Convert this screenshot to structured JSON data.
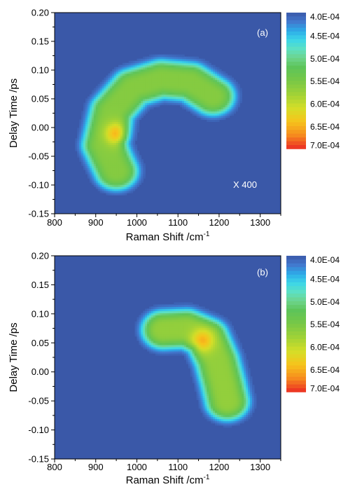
{
  "chart_data": [
    {
      "type": "heatmap",
      "panel_label": "(a)",
      "annotation": "X 400",
      "xlabel": "Raman Shift /cm",
      "xlabel_sup": "-1",
      "ylabel": "Delay Time /ps",
      "xlim": [
        800,
        1350
      ],
      "ylim": [
        -0.15,
        0.2
      ],
      "x_ticks": [
        "800",
        "900",
        "1000",
        "1100",
        "1200",
        "1300"
      ],
      "y_ticks": [
        "-0.15",
        "-0.10",
        "-0.05",
        "0.00",
        "0.05",
        "0.10",
        "0.15",
        "0.20"
      ],
      "x_tick_values": [
        800,
        900,
        1000,
        1100,
        1200,
        1300
      ],
      "y_tick_values": [
        -0.15,
        -0.1,
        -0.05,
        0.0,
        0.05,
        0.1,
        0.15,
        0.2
      ],
      "colorbar": {
        "labels": [
          "4.0E-04",
          "4.5E-04",
          "5.0E-04",
          "5.5E-04",
          "6.0E-04",
          "6.5E-04",
          "7.0E-04"
        ],
        "min": 0.0004,
        "max": 0.0007
      },
      "features": [
        {
          "shape": "curved ridge",
          "path": [
            [
              950,
              -0.075
            ],
            [
              920,
              -0.03
            ],
            [
              940,
              0.03
            ],
            [
              990,
              0.07
            ],
            [
              1060,
              0.085
            ],
            [
              1130,
              0.08
            ],
            [
              1185,
              0.055
            ]
          ],
          "peak_value": 0.00056
        },
        {
          "shape": "peak",
          "x": 950,
          "y": -0.01,
          "value": 0.00065
        }
      ]
    },
    {
      "type": "heatmap",
      "panel_label": "(b)",
      "xlabel": "Raman Shift /cm",
      "xlabel_sup": "-1",
      "ylabel": "Delay Time /ps",
      "xlim": [
        800,
        1350
      ],
      "ylim": [
        -0.15,
        0.2
      ],
      "x_ticks": [
        "800",
        "900",
        "1000",
        "1100",
        "1200",
        "1300"
      ],
      "y_ticks": [
        "-0.15",
        "-0.10",
        "-0.05",
        "0.00",
        "0.05",
        "0.10",
        "0.15",
        "0.20"
      ],
      "x_tick_values": [
        800,
        900,
        1000,
        1100,
        1200,
        1300
      ],
      "y_tick_values": [
        -0.15,
        -0.1,
        -0.05,
        0.0,
        0.05,
        0.1,
        0.15,
        0.2
      ],
      "colorbar": {
        "labels": [
          "4.0E-04",
          "4.5E-04",
          "5.0E-04",
          "5.5E-04",
          "6.0E-04",
          "6.5E-04",
          "7.0E-04"
        ],
        "min": 0.0004,
        "max": 0.0007
      },
      "features": [
        {
          "shape": "curved ridge",
          "path": [
            [
              1065,
              0.073
            ],
            [
              1120,
              0.075
            ],
            [
              1170,
              0.06
            ],
            [
              1195,
              0.02
            ],
            [
              1210,
              -0.02
            ],
            [
              1220,
              -0.05
            ]
          ],
          "peak_value": 0.00057
        },
        {
          "shape": "peak",
          "x": 1160,
          "y": 0.055,
          "value": 0.00065
        }
      ]
    }
  ]
}
